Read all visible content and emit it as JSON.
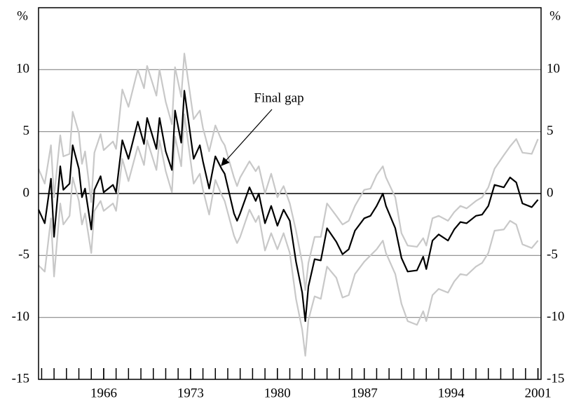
{
  "chart_data": {
    "type": "line",
    "ylabel": "%",
    "xlim": [
      1960.75,
      2001.25
    ],
    "xticks": [
      1966,
      1973,
      1980,
      1987,
      1994,
      2001
    ],
    "xminor_ticks": [
      1961,
      1962,
      1963,
      1964,
      1965,
      1966,
      1967,
      1968,
      1969,
      1970,
      1971,
      1972,
      1973,
      1974,
      1975,
      1976,
      1977,
      1978,
      1979,
      1980,
      1981,
      1982,
      1983,
      1984,
      1985,
      1986,
      1987,
      1988,
      1989,
      1990,
      1991,
      1992,
      1993,
      1994,
      1995,
      1996,
      1997,
      1998,
      1999,
      2000,
      2001
    ],
    "ylim": [
      -15,
      15
    ],
    "yticks": [
      -15,
      -10,
      -5,
      0,
      5,
      10
    ],
    "y2lim": [
      -15,
      15
    ],
    "y2ticks": [
      -15,
      -10,
      -5,
      0,
      5,
      10
    ],
    "grid": true,
    "x": [
      1960.75,
      1961.25,
      1961.75,
      1962.0,
      1962.5,
      1962.75,
      1963.25,
      1963.5,
      1964.0,
      1964.25,
      1964.5,
      1965.0,
      1965.25,
      1965.75,
      1966.0,
      1966.75,
      1967.0,
      1967.5,
      1968.0,
      1968.75,
      1969.25,
      1969.5,
      1970.25,
      1970.5,
      1971.0,
      1971.5,
      1971.75,
      1972.25,
      1972.5,
      1973.25,
      1973.75,
      1974.0,
      1974.5,
      1975.0,
      1975.5,
      1975.75,
      1976.5,
      1976.75,
      1977.0,
      1977.75,
      1978.25,
      1978.5,
      1979.0,
      1979.5,
      1980.0,
      1980.5,
      1981.0,
      1981.5,
      1982.0,
      1982.25,
      1982.5,
      1983.0,
      1983.5,
      1984.0,
      1984.75,
      1985.25,
      1985.75,
      1986.25,
      1987.0,
      1987.5,
      1988.0,
      1988.5,
      1988.75,
      1989.5,
      1990.0,
      1990.5,
      1991.25,
      1991.75,
      1992.0,
      1992.5,
      1993.0,
      1993.75,
      1994.25,
      1994.75,
      1995.25,
      1996.0,
      1996.5,
      1997.0,
      1997.5,
      1998.25,
      1998.75,
      1999.25,
      1999.75,
      2000.5,
      2001.0
    ],
    "series": [
      {
        "name": "Final gap",
        "color": "#000000",
        "width": 2.2,
        "values": [
          -1.3,
          -2.4,
          1.2,
          -3.5,
          2.2,
          0.3,
          0.8,
          3.9,
          2.0,
          -0.3,
          0.4,
          -2.9,
          0.3,
          1.4,
          0.1,
          0.7,
          0.1,
          4.3,
          2.8,
          5.8,
          4.0,
          6.1,
          3.6,
          6.1,
          3.4,
          1.9,
          6.7,
          4.1,
          8.3,
          2.8,
          3.9,
          2.6,
          0.4,
          3.0,
          2.0,
          1.6,
          -1.6,
          -2.2,
          -1.6,
          0.5,
          -0.6,
          0.0,
          -2.4,
          -1.0,
          -2.6,
          -1.3,
          -2.2,
          -5.5,
          -8.0,
          -10.3,
          -7.5,
          -5.3,
          -5.4,
          -2.8,
          -3.9,
          -4.9,
          -4.5,
          -3.0,
          -2.0,
          -1.8,
          -1.0,
          0.0,
          -1.0,
          -2.8,
          -5.2,
          -6.3,
          -6.2,
          -5.1,
          -6.1,
          -3.8,
          -3.3,
          -3.8,
          -2.9,
          -2.3,
          -2.4,
          -1.8,
          -1.7,
          -1.0,
          0.7,
          0.5,
          1.3,
          0.9,
          -0.8,
          -1.1,
          -0.5
        ]
      },
      {
        "color": "#c8c8c8",
        "width": 2.2,
        "values": [
          2.0,
          0.8,
          3.9,
          -0.3,
          4.7,
          3.0,
          3.2,
          6.6,
          4.9,
          2.4,
          3.4,
          -0.7,
          3.3,
          4.8,
          3.5,
          4.2,
          3.6,
          8.4,
          7.0,
          10.0,
          8.5,
          10.3,
          7.9,
          10.0,
          7.4,
          5.6,
          10.2,
          7.8,
          11.3,
          6.0,
          6.7,
          5.3,
          3.4,
          5.5,
          4.3,
          3.9,
          1.3,
          0.6,
          1.3,
          2.6,
          1.8,
          2.2,
          0.0,
          1.6,
          -0.3,
          0.6,
          -0.8,
          -3.0,
          -5.6,
          -7.8,
          -5.6,
          -3.5,
          -3.5,
          -0.8,
          -1.8,
          -2.5,
          -2.2,
          -1.0,
          0.3,
          0.4,
          1.5,
          2.2,
          1.3,
          -0.3,
          -3.2,
          -4.2,
          -4.3,
          -3.6,
          -4.2,
          -2.0,
          -1.8,
          -2.2,
          -1.5,
          -1.0,
          -1.2,
          -0.6,
          -0.3,
          0.5,
          2.0,
          3.1,
          3.8,
          4.4,
          3.3,
          3.2,
          4.4
        ]
      },
      {
        "color": "#c8c8c8",
        "width": 2.2,
        "values": [
          -5.8,
          -6.3,
          -2.0,
          -6.7,
          -0.8,
          -2.5,
          -1.8,
          1.3,
          -0.6,
          -2.5,
          -1.6,
          -4.8,
          -1.4,
          -0.6,
          -1.4,
          -0.8,
          -1.4,
          2.8,
          1.0,
          3.8,
          2.3,
          4.3,
          1.9,
          4.3,
          1.8,
          0.1,
          4.6,
          2.2,
          6.4,
          0.8,
          1.6,
          0.3,
          -1.7,
          1.1,
          -0.1,
          -0.6,
          -3.4,
          -4.0,
          -3.5,
          -1.3,
          -2.3,
          -1.8,
          -4.6,
          -3.2,
          -4.5,
          -3.2,
          -4.8,
          -8.5,
          -11.0,
          -13.1,
          -10.2,
          -8.3,
          -8.5,
          -5.9,
          -6.8,
          -8.4,
          -8.2,
          -6.5,
          -5.5,
          -5.0,
          -4.5,
          -3.8,
          -4.8,
          -6.5,
          -8.9,
          -10.3,
          -10.6,
          -9.5,
          -10.3,
          -8.2,
          -7.7,
          -8.0,
          -7.1,
          -6.5,
          -6.6,
          -5.9,
          -5.6,
          -4.8,
          -3.0,
          -2.9,
          -2.2,
          -2.5,
          -4.1,
          -4.4,
          -3.8
        ]
      }
    ]
  }
}
